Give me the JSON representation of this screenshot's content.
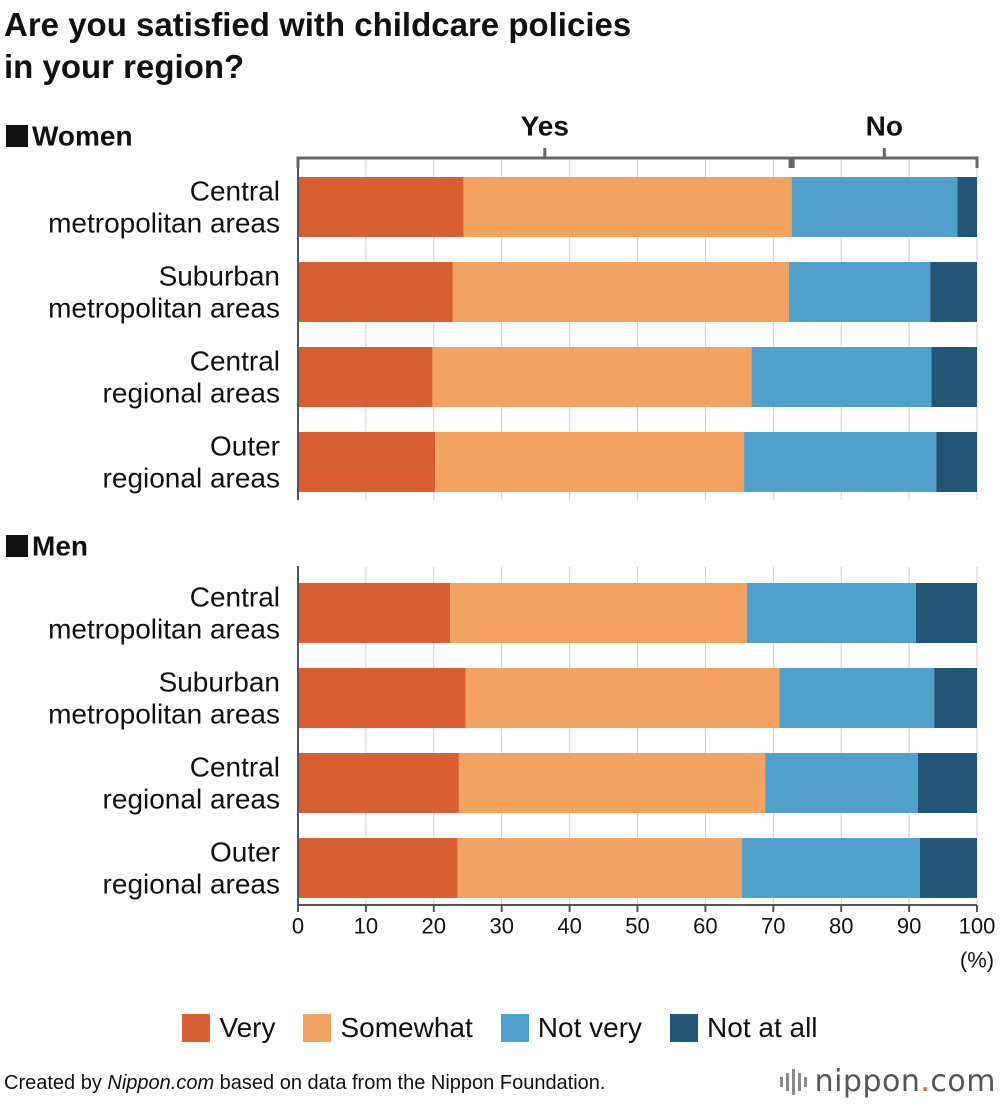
{
  "title": {
    "line1": "Are you satisfied with childcare policies",
    "line2": "in your region?"
  },
  "chart_data": {
    "type": "bar",
    "orientation": "horizontal",
    "stacked": true,
    "groups": [
      {
        "label": "Women",
        "categories": [
          "Central\nmetropolitan areas",
          "Suburban\nmetropolitan areas",
          "Central\nregional areas",
          "Outer\nregional areas"
        ],
        "series": [
          {
            "name": "Very",
            "values": [
              24.4,
              22.8,
              19.8,
              20.2
            ]
          },
          {
            "name": "Somewhat",
            "values": [
              48.3,
              49.5,
              47.0,
              45.5
            ]
          },
          {
            "name": "Not very",
            "values": [
              24.4,
              20.8,
              26.5,
              28.3
            ]
          },
          {
            "name": "Not at all",
            "values": [
              2.9,
              6.9,
              6.7,
              6.0
            ]
          }
        ]
      },
      {
        "label": "Men",
        "categories": [
          "Central\nmetropolitan areas",
          "Suburban\nmetropolitan areas",
          "Central\nregional areas",
          "Outer\nregional areas"
        ],
        "series": [
          {
            "name": "Very",
            "values": [
              22.4,
              24.7,
              23.7,
              23.5
            ]
          },
          {
            "name": "Somewhat",
            "values": [
              43.7,
              46.2,
              45.1,
              41.9
            ]
          },
          {
            "name": "Not very",
            "values": [
              24.9,
              22.8,
              22.5,
              26.2
            ]
          },
          {
            "name": "Not at all",
            "values": [
              9.0,
              6.3,
              8.7,
              8.4
            ]
          }
        ]
      }
    ],
    "yes_no_bracket": {
      "yes_label": "Yes",
      "no_label": "No",
      "split": 72.7
    },
    "xlim": [
      0,
      100
    ],
    "xticks": [
      0,
      10,
      20,
      30,
      40,
      50,
      60,
      70,
      80,
      90,
      100
    ],
    "xunit": "(%)",
    "grid": true,
    "legend_position": "bottom",
    "colors": {
      "Very": "#da5e33",
      "Somewhat": "#f2a362",
      "Not very": "#51a0cc",
      "Not at all": "#235575"
    }
  },
  "footer": {
    "prefix": "Created by ",
    "site": "Nippon.com",
    "suffix": " based on data from the Nippon Foundation."
  },
  "logo": {
    "name": "nippon",
    "dot": ".",
    "tld": "com"
  }
}
